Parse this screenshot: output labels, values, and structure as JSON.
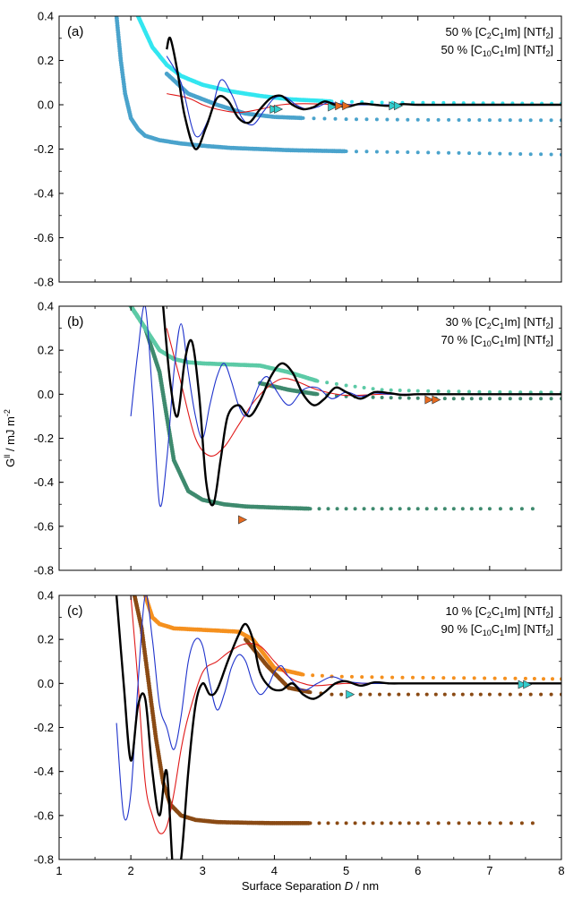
{
  "chart_data": [
    {
      "type": "scatter",
      "panel_label": "(a)",
      "annotation": [
        "50 % [C",
        "2",
        "C",
        "1",
        "Im] [NTf",
        "2",
        "]",
        "50 % [C",
        "10",
        "C",
        "1",
        "Im] [NTf",
        "2",
        "]"
      ],
      "xlim": [
        1,
        8
      ],
      "ylim": [
        -0.8,
        0.4
      ],
      "ylabel": "G",
      "ylabel_sup": "ll",
      "ylabel_units": " / mJ m",
      "ylabel_units_sup": "-2",
      "xlabel": "Surface Separation ",
      "xlabel_italic": "D",
      "xlabel_units": " / nm",
      "yticks": [
        "0.4",
        "0.2",
        "0.0",
        "-0.2",
        "-0.4",
        "-0.6",
        "-0.8"
      ],
      "xticks": [],
      "grid": false,
      "colors": {
        "outward": "#4aa3cc",
        "inward": "#33e6f0",
        "fit_black": "#000000",
        "fit_blue": "#1f33cc",
        "fit_red": "#e01a1a",
        "marker_a": "#33cccc",
        "marker_b": "#e66a1e"
      },
      "series": [
        {
          "role": "outward",
          "x": [
            1.8,
            1.86,
            1.92,
            2.0,
            2.1,
            2.2,
            2.4,
            2.7,
            3.0,
            3.4,
            3.8,
            4.2,
            5.0,
            6.0,
            7.0,
            8.0
          ],
          "y": [
            0.4,
            0.2,
            0.05,
            -0.06,
            -0.11,
            -0.14,
            -0.16,
            -0.175,
            -0.185,
            -0.195,
            -0.2,
            -0.205,
            -0.21,
            -0.215,
            -0.22,
            -0.225
          ]
        },
        {
          "role": "outward_branch",
          "x": [
            2.5,
            2.8,
            3.2,
            3.6,
            4.0,
            4.4,
            5.0,
            6.0,
            7.0,
            8.0
          ],
          "y": [
            0.14,
            0.05,
            0.0,
            -0.04,
            -0.055,
            -0.06,
            -0.065,
            -0.068,
            -0.069,
            -0.07
          ]
        },
        {
          "role": "inward",
          "x": [
            2.1,
            2.3,
            2.5,
            2.7,
            3.0,
            3.4,
            3.8,
            4.2,
            4.8,
            5.5,
            6.5,
            8.0
          ],
          "y": [
            0.4,
            0.26,
            0.18,
            0.13,
            0.09,
            0.06,
            0.04,
            0.025,
            0.015,
            0.01,
            0.008,
            0.005
          ]
        },
        {
          "role": "fit_black",
          "x": [
            2.5,
            2.55,
            2.65,
            2.75,
            2.9,
            3.05,
            3.2,
            3.35,
            3.5,
            3.65,
            3.8,
            3.95,
            4.1,
            4.25,
            4.4,
            4.55,
            4.7,
            4.85,
            5.0,
            5.2,
            5.4,
            5.6,
            5.8,
            6.0,
            6.5,
            7.0,
            8.0
          ],
          "y": [
            0.25,
            0.3,
            0.15,
            -0.05,
            -0.2,
            -0.1,
            0.03,
            0.02,
            -0.06,
            -0.08,
            -0.02,
            0.03,
            0.04,
            0.0,
            -0.02,
            -0.01,
            0.015,
            0.0,
            -0.01,
            0.005,
            0.0,
            -0.005,
            0.003,
            0.0,
            0.0,
            0.0,
            0.0
          ]
        },
        {
          "role": "fit_blue",
          "x": [
            2.5,
            2.7,
            2.9,
            3.1,
            3.25,
            3.4,
            3.55,
            3.7,
            3.85,
            4.0,
            4.15,
            4.3,
            4.45,
            4.6,
            4.75,
            4.9,
            5.1,
            5.4,
            6.0,
            7.0,
            8.0
          ],
          "y": [
            0.22,
            0.1,
            -0.14,
            -0.05,
            0.11,
            0.05,
            -0.06,
            -0.09,
            -0.03,
            0.03,
            0.035,
            0.0,
            -0.02,
            -0.01,
            0.01,
            0.005,
            0.0,
            0.0,
            0.0,
            0.0,
            0.0
          ]
        },
        {
          "role": "fit_red",
          "x": [
            2.5,
            2.8,
            3.0,
            3.2,
            3.5,
            3.8,
            4.1,
            4.4,
            4.8,
            5.2,
            6.0,
            7.0,
            8.0
          ],
          "y": [
            0.05,
            0.03,
            0.0,
            -0.02,
            -0.035,
            -0.02,
            0.0,
            0.005,
            0.002,
            0.0,
            0.0,
            0.0,
            0.0
          ]
        }
      ],
      "markers": [
        {
          "x": 3.99,
          "y": -0.02,
          "color_key": "marker_a"
        },
        {
          "x": 4.05,
          "y": -0.02,
          "color_key": "marker_a"
        },
        {
          "x": 4.8,
          "y": -0.01,
          "color_key": "marker_a"
        },
        {
          "x": 4.9,
          "y": -0.005,
          "color_key": "marker_b"
        },
        {
          "x": 5.0,
          "y": -0.005,
          "color_key": "marker_b"
        },
        {
          "x": 5.65,
          "y": -0.005,
          "color_key": "marker_a"
        },
        {
          "x": 5.72,
          "y": -0.005,
          "color_key": "marker_a"
        }
      ]
    },
    {
      "type": "scatter",
      "panel_label": "(b)",
      "annotation": [
        "30 % [C",
        "2",
        "C",
        "1",
        "Im] [NTf",
        "2",
        "]",
        "70 % [C",
        "10",
        "C",
        "1",
        "Im] [NTf",
        "2",
        "]"
      ],
      "xlim": [
        1,
        8
      ],
      "ylim": [
        -0.8,
        0.4
      ],
      "ylabel": "G",
      "ylabel_sup": "ll",
      "ylabel_units": " / mJ m",
      "ylabel_units_sup": "-2",
      "yticks": [
        "0.4",
        "0.2",
        "0.0",
        "-0.2",
        "-0.4",
        "-0.6",
        "-0.8"
      ],
      "xticks": [],
      "grid": false,
      "colors": {
        "outward": "#3e8a6e",
        "inward": "#5ccaa6",
        "fit_black": "#000000",
        "fit_blue": "#1f33cc",
        "fit_red": "#e01a1a",
        "marker_a": "#e66a1e",
        "marker_b": "#e66a1e"
      },
      "series": [
        {
          "role": "outward",
          "x": [
            2.0,
            2.2,
            2.4,
            2.6,
            2.8,
            3.0,
            3.3,
            3.6,
            4.0,
            4.5,
            5.0,
            5.5,
            6.0,
            6.5,
            7.0,
            7.6
          ],
          "y": [
            0.4,
            0.3,
            0.1,
            -0.3,
            -0.44,
            -0.48,
            -0.5,
            -0.51,
            -0.515,
            -0.52,
            -0.52,
            -0.52,
            -0.52,
            -0.52,
            -0.52,
            -0.52
          ]
        },
        {
          "role": "outward_branch",
          "x": [
            3.8,
            4.2,
            4.6,
            5.0,
            5.5,
            6.0,
            6.5,
            7.0,
            8.0
          ],
          "y": [
            0.05,
            0.02,
            0.0,
            -0.01,
            -0.015,
            -0.018,
            -0.02,
            -0.02,
            -0.02
          ]
        },
        {
          "role": "inward",
          "x": [
            2.0,
            2.2,
            2.4,
            2.6,
            2.8,
            3.0,
            3.4,
            3.8,
            4.2,
            4.6,
            5.0,
            5.5,
            6.0,
            7.0,
            8.0
          ],
          "y": [
            0.4,
            0.3,
            0.2,
            0.16,
            0.145,
            0.14,
            0.135,
            0.13,
            0.1,
            0.06,
            0.04,
            0.02,
            0.015,
            0.01,
            0.008
          ]
        },
        {
          "role": "fit_black",
          "x": [
            2.45,
            2.55,
            2.65,
            2.75,
            2.85,
            2.95,
            3.05,
            3.15,
            3.25,
            3.35,
            3.5,
            3.65,
            3.8,
            3.95,
            4.1,
            4.25,
            4.4,
            4.55,
            4.7,
            4.85,
            5.0,
            5.2,
            5.4,
            5.6,
            5.8,
            6.0,
            6.5,
            7.0,
            8.0
          ],
          "y": [
            0.4,
            0.05,
            -0.1,
            0.15,
            0.24,
            0.0,
            -0.4,
            -0.5,
            -0.3,
            -0.1,
            -0.05,
            -0.1,
            -0.03,
            0.08,
            0.14,
            0.1,
            0.0,
            -0.05,
            -0.02,
            0.03,
            0.01,
            -0.02,
            0.01,
            0.005,
            -0.003,
            0.0,
            0.0,
            0.0,
            0.0
          ]
        },
        {
          "role": "fit_blue",
          "x": [
            2.0,
            2.1,
            2.2,
            2.3,
            2.4,
            2.5,
            2.6,
            2.7,
            2.8,
            2.9,
            3.0,
            3.1,
            3.2,
            3.3,
            3.4,
            3.5,
            3.6,
            3.7,
            3.8,
            3.9,
            4.0,
            4.2,
            4.4,
            4.6,
            4.8,
            5.0,
            5.2,
            5.4,
            5.6,
            6.0,
            7.0,
            8.0
          ],
          "y": [
            -0.1,
            0.2,
            0.4,
            0.0,
            -0.5,
            -0.3,
            0.1,
            0.32,
            0.1,
            -0.1,
            -0.2,
            -0.05,
            0.08,
            0.14,
            0.06,
            -0.05,
            -0.1,
            -0.03,
            0.05,
            0.08,
            0.03,
            -0.05,
            0.02,
            0.03,
            -0.02,
            0.01,
            -0.01,
            0.005,
            0.0,
            0.0,
            0.0,
            0.0
          ]
        },
        {
          "role": "fit_red",
          "x": [
            2.5,
            2.7,
            2.9,
            3.1,
            3.3,
            3.5,
            3.7,
            3.9,
            4.1,
            4.3,
            4.6,
            5.0,
            5.5,
            6.0,
            7.0,
            8.0
          ],
          "y": [
            0.3,
            0.05,
            -0.2,
            -0.28,
            -0.24,
            -0.14,
            -0.04,
            0.03,
            0.07,
            0.06,
            0.02,
            -0.005,
            0.0,
            0.0,
            0.0,
            0.0
          ]
        }
      ],
      "markers": [
        {
          "x": 3.55,
          "y": -0.57,
          "color_key": "marker_a"
        },
        {
          "x": 6.15,
          "y": -0.025,
          "color_key": "marker_a"
        },
        {
          "x": 6.25,
          "y": -0.025,
          "color_key": "marker_a"
        }
      ]
    },
    {
      "type": "scatter",
      "panel_label": "(c)",
      "annotation": [
        "10 % [C",
        "2",
        "C",
        "1",
        "Im] [NTf",
        "2",
        "]",
        "90 % [C",
        "10",
        "C",
        "1",
        "Im] [NTf",
        "2",
        "]"
      ],
      "xlim": [
        1,
        8
      ],
      "ylim": [
        -0.8,
        0.4
      ],
      "ylabel": "G",
      "ylabel_sup": "ll",
      "ylabel_units": " / mJ m",
      "ylabel_units_sup": "-2",
      "yticks": [
        "0.4",
        "0.2",
        "0.0",
        "-0.2",
        "-0.4",
        "-0.6",
        "-0.8"
      ],
      "xticks": [
        "1",
        "2",
        "3",
        "4",
        "5",
        "6",
        "7",
        "8"
      ],
      "grid": false,
      "colors": {
        "outward": "#8a4a14",
        "inward": "#f5901e",
        "fit_black": "#000000",
        "fit_blue": "#1f33cc",
        "fit_red": "#e01a1a",
        "marker_a": "#33cccc",
        "marker_b": "#33cccc"
      },
      "series": [
        {
          "role": "outward",
          "x": [
            2.05,
            2.15,
            2.25,
            2.35,
            2.45,
            2.55,
            2.7,
            2.9,
            3.2,
            3.6,
            4.0,
            4.5,
            5.0,
            5.5,
            6.0,
            7.0,
            7.6
          ],
          "y": [
            0.4,
            0.25,
            0.0,
            -0.25,
            -0.45,
            -0.55,
            -0.6,
            -0.62,
            -0.63,
            -0.633,
            -0.635,
            -0.635,
            -0.635,
            -0.635,
            -0.635,
            -0.635,
            -0.635
          ]
        },
        {
          "role": "outward_branch",
          "x": [
            3.6,
            3.9,
            4.2,
            4.5,
            4.8,
            5.2,
            5.6,
            6.0,
            6.5,
            7.0,
            8.0
          ],
          "y": [
            0.2,
            0.08,
            -0.02,
            -0.04,
            -0.05,
            -0.05,
            -0.05,
            -0.05,
            -0.05,
            -0.05,
            -0.05
          ]
        },
        {
          "role": "inward",
          "x": [
            2.2,
            2.3,
            2.4,
            2.6,
            2.9,
            3.2,
            3.5,
            3.7,
            4.0,
            4.4,
            4.8,
            5.5,
            6.5,
            7.5,
            8.0
          ],
          "y": [
            0.4,
            0.3,
            0.27,
            0.25,
            0.245,
            0.24,
            0.235,
            0.2,
            0.07,
            0.04,
            0.032,
            0.028,
            0.025,
            0.022,
            0.02
          ]
        },
        {
          "role": "fit_black",
          "x": [
            1.8,
            1.9,
            2.0,
            2.1,
            2.2,
            2.3,
            2.4,
            2.5,
            2.6,
            2.7,
            2.8,
            2.9,
            3.0,
            3.1,
            3.2,
            3.35,
            3.5,
            3.6,
            3.7,
            3.8,
            3.95,
            4.1,
            4.25,
            4.4,
            4.55,
            4.7,
            4.85,
            5.0,
            5.2,
            5.4,
            5.6,
            5.8,
            6.0,
            7.0,
            8.0
          ],
          "y": [
            0.4,
            0.0,
            -0.35,
            -0.1,
            -0.07,
            -0.4,
            -0.6,
            -0.4,
            -0.9,
            -0.8,
            -0.4,
            -0.1,
            0.0,
            -0.05,
            -0.03,
            0.1,
            0.22,
            0.27,
            0.2,
            0.05,
            -0.02,
            -0.03,
            0.0,
            -0.05,
            -0.07,
            -0.04,
            0.0,
            0.01,
            -0.01,
            0.005,
            0.0,
            0.0,
            0.0,
            0.0,
            0.0
          ]
        },
        {
          "role": "fit_blue",
          "x": [
            1.8,
            1.9,
            2.0,
            2.1,
            2.2,
            2.3,
            2.4,
            2.5,
            2.6,
            2.7,
            2.8,
            2.9,
            3.0,
            3.1,
            3.2,
            3.3,
            3.4,
            3.5,
            3.6,
            3.7,
            3.8,
            3.9,
            4.0,
            4.1,
            4.2,
            4.4,
            4.6,
            4.8,
            5.0,
            5.3,
            6.0,
            7.0,
            8.0
          ],
          "y": [
            -0.18,
            -0.6,
            -0.5,
            0.0,
            0.4,
            0.2,
            -0.1,
            -0.2,
            -0.3,
            -0.15,
            0.1,
            0.2,
            0.17,
            0.0,
            -0.12,
            -0.05,
            0.07,
            0.13,
            0.1,
            0.0,
            -0.05,
            -0.02,
            0.05,
            0.08,
            0.03,
            -0.03,
            0.0,
            0.03,
            0.01,
            0.0,
            0.0,
            0.0,
            0.0
          ]
        },
        {
          "role": "fit_red",
          "x": [
            2.0,
            2.1,
            2.2,
            2.3,
            2.4,
            2.5,
            2.6,
            2.7,
            2.8,
            3.0,
            3.2,
            3.4,
            3.6,
            3.8,
            4.0,
            4.2,
            4.4,
            4.6,
            5.0,
            5.5,
            6.0,
            7.0,
            8.0
          ],
          "y": [
            0.4,
            0.0,
            -0.45,
            -0.6,
            -0.68,
            -0.65,
            -0.5,
            -0.3,
            -0.15,
            0.05,
            0.1,
            0.15,
            0.18,
            0.17,
            0.1,
            0.03,
            0.0,
            -0.01,
            0.0,
            0.0,
            0.0,
            0.0,
            0.0
          ]
        }
      ],
      "markers": [
        {
          "x": 5.05,
          "y": -0.05,
          "color_key": "marker_a"
        },
        {
          "x": 7.45,
          "y": -0.005,
          "color_key": "marker_a"
        },
        {
          "x": 7.52,
          "y": -0.005,
          "color_key": "marker_a"
        }
      ]
    }
  ]
}
